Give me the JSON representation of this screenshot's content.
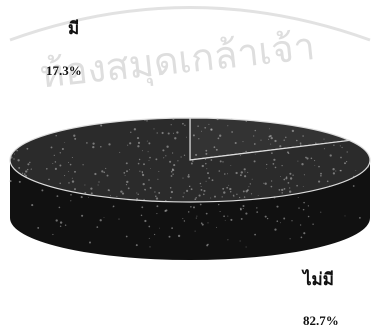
{
  "chart_data": {
    "type": "pie",
    "categories": [
      "มี",
      "ไม่มี"
    ],
    "values": [
      17.3,
      82.7
    ],
    "value_labels": [
      "17.3%",
      "82.7%"
    ],
    "title": "",
    "legend": "none"
  },
  "watermark": {
    "text": "ห้องสมุดเกล้าเจ้า",
    "color": "#d9d9d9"
  },
  "colors": {
    "slice_top": "#2b2b2b",
    "slice_side": "#111111",
    "separator": "#dddddd",
    "label": "#111111"
  }
}
